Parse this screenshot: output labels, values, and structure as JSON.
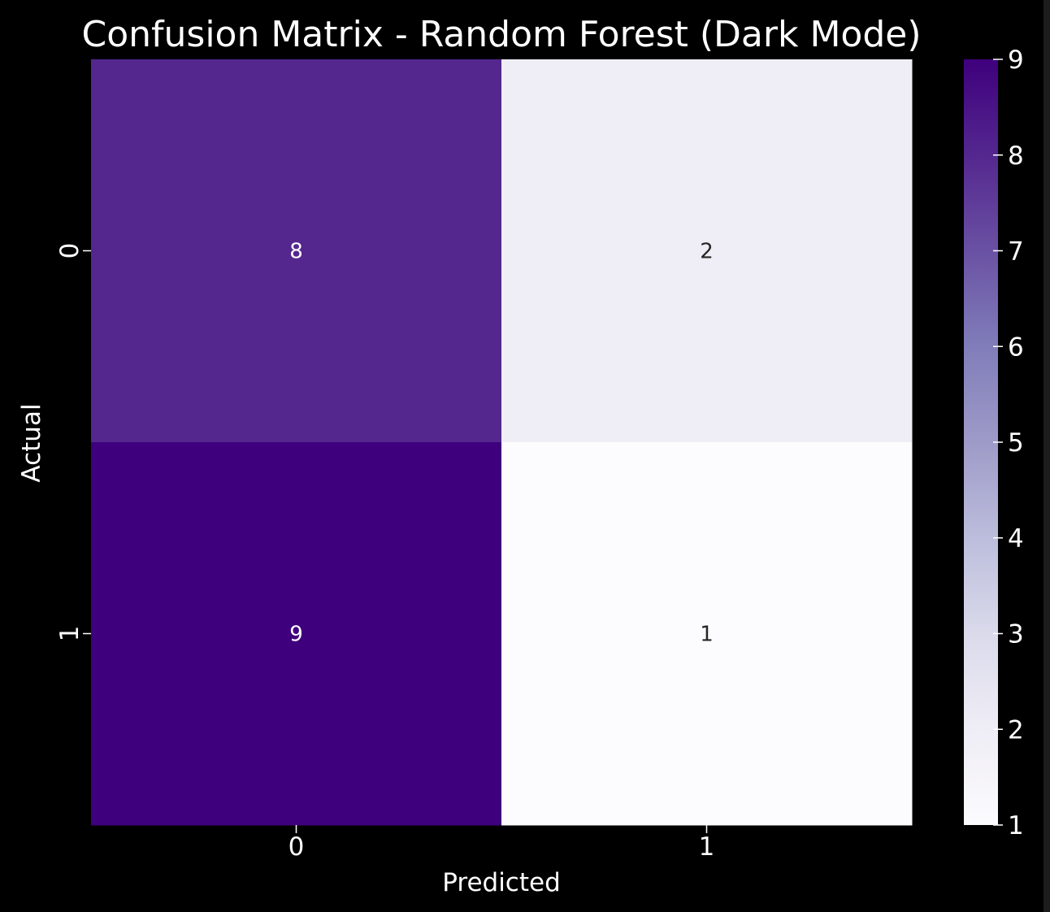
{
  "chart_data": {
    "type": "heatmap",
    "title": "Confusion Matrix - Random Forest (Dark Mode)",
    "xlabel": "Predicted",
    "ylabel": "Actual",
    "x_categories": [
      "0",
      "1"
    ],
    "y_categories": [
      "0",
      "1"
    ],
    "values": [
      [
        8,
        2
      ],
      [
        9,
        1
      ]
    ],
    "colormap": "Purples",
    "colorbar": {
      "min": 1,
      "max": 9,
      "ticks": [
        "1",
        "2",
        "3",
        "4",
        "5",
        "6",
        "7",
        "8",
        "9"
      ]
    },
    "theme": "dark",
    "grid": false
  },
  "colors": {
    "background": "#000000",
    "text": "#ffffff",
    "annotation_dark": "#262626",
    "annotation_light": "#ffffff"
  }
}
